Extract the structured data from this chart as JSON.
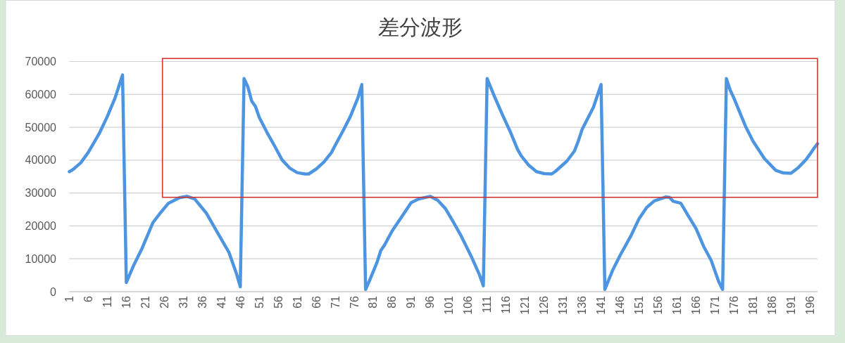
{
  "chart_data": {
    "type": "line",
    "title": "差分波形",
    "color": "#4d95e0",
    "grid": "y",
    "xlim": [
      1,
      198
    ],
    "xticks": [
      1,
      6,
      11,
      16,
      21,
      26,
      31,
      36,
      41,
      46,
      51,
      56,
      61,
      66,
      71,
      76,
      81,
      86,
      91,
      96,
      101,
      106,
      111,
      116,
      121,
      126,
      131,
      136,
      141,
      146,
      151,
      156,
      161,
      166,
      171,
      176,
      181,
      186,
      191,
      196
    ],
    "ylim": [
      0,
      70000
    ],
    "yticks": [
      0,
      10000,
      20000,
      30000,
      40000,
      50000,
      60000,
      70000
    ],
    "x": [
      1,
      2,
      4,
      6,
      9,
      11,
      13,
      15,
      16,
      18,
      20,
      23,
      25,
      27,
      30,
      32,
      34,
      37,
      40,
      43,
      45,
      46,
      47,
      48,
      49,
      50,
      51,
      53,
      55,
      57,
      59,
      61,
      63,
      64,
      66,
      68,
      70,
      71,
      73,
      75,
      77,
      78,
      79,
      80,
      82,
      83,
      84,
      86,
      88,
      91,
      93,
      96,
      98,
      100,
      102,
      104,
      107,
      109,
      110,
      111,
      113,
      115,
      117,
      119,
      120,
      122,
      124,
      126,
      128,
      129,
      132,
      134,
      135,
      136,
      139,
      141,
      142,
      144,
      146,
      149,
      151,
      153,
      155,
      158,
      159,
      160,
      162,
      164,
      166,
      168,
      170,
      172,
      173,
      174,
      175,
      176,
      178,
      179,
      181,
      184,
      187,
      189,
      191,
      193,
      195,
      196,
      197,
      198
    ],
    "values": [
      36500,
      37200,
      39200,
      42400,
      48400,
      53300,
      58800,
      65900,
      2800,
      8200,
      12800,
      21000,
      24000,
      26800,
      28600,
      29000,
      28200,
      24000,
      18000,
      12000,
      5500,
      1500,
      64800,
      62300,
      58000,
      56300,
      53000,
      48500,
      44400,
      40100,
      37600,
      36200,
      35800,
      35800,
      37300,
      39400,
      42300,
      44500,
      48800,
      53300,
      59000,
      63000,
      700,
      3300,
      8900,
      12500,
      14200,
      18500,
      21900,
      27100,
      28200,
      29000,
      27800,
      25300,
      21400,
      17300,
      10300,
      5100,
      1800,
      64800,
      59200,
      53900,
      48900,
      43300,
      41300,
      38400,
      36500,
      35900,
      35800,
      36600,
      39700,
      42800,
      45800,
      49300,
      56100,
      63000,
      700,
      6400,
      11000,
      17300,
      22200,
      25600,
      27600,
      28800,
      28700,
      27500,
      26900,
      23000,
      19200,
      13800,
      9500,
      3000,
      700,
      64800,
      61300,
      58800,
      53200,
      50400,
      45800,
      40500,
      36900,
      36100,
      36000,
      37800,
      40200,
      41800,
      43500,
      45000
    ]
  }
}
